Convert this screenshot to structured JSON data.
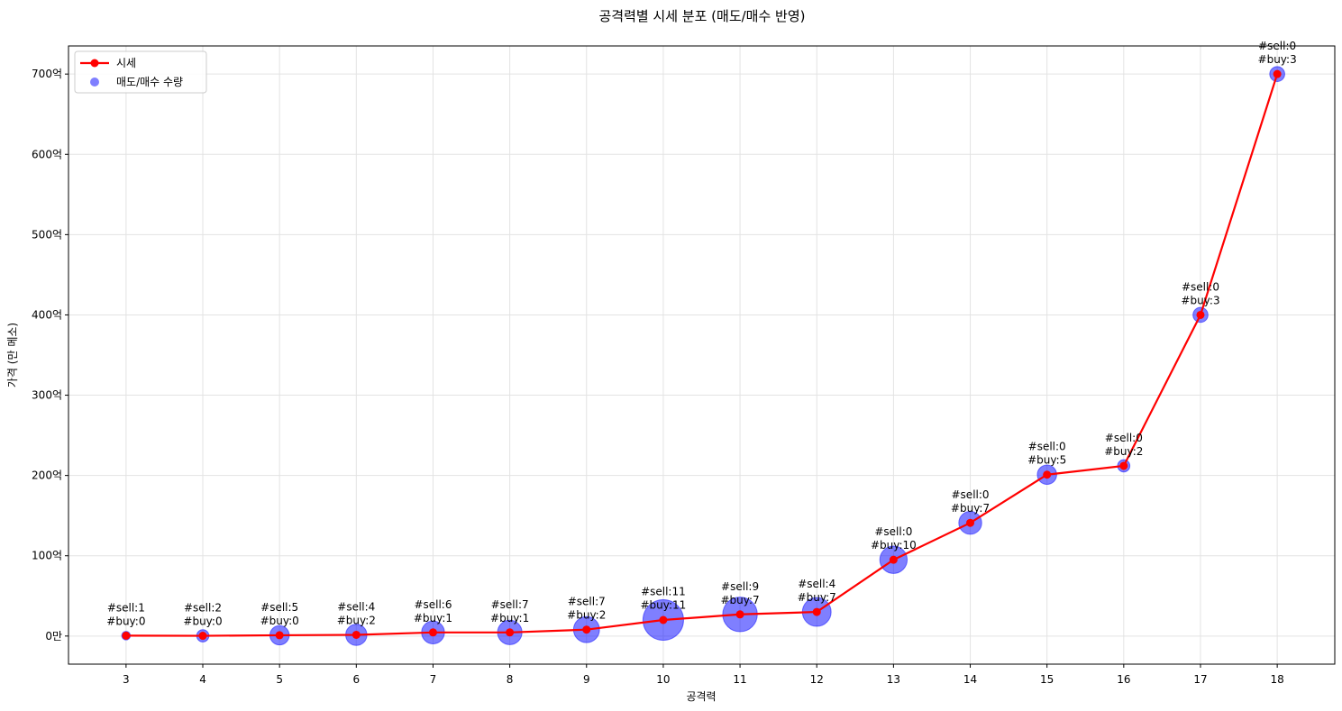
{
  "chart_data": {
    "type": "line",
    "title": "공격력별 시세 분포 (매도/매수 반영)",
    "xlabel": "공격력",
    "ylabel": "가격 (만 메소)",
    "x": [
      3,
      4,
      5,
      6,
      7,
      8,
      9,
      10,
      11,
      12,
      13,
      14,
      15,
      16,
      17,
      18
    ],
    "xlim": [
      2.25,
      18.75
    ],
    "ylim": [
      -35,
      735
    ],
    "y_ticks": [
      {
        "value": 0,
        "label": "0만"
      },
      {
        "value": 100,
        "label": "100억"
      },
      {
        "value": 200,
        "label": "200억"
      },
      {
        "value": 300,
        "label": "300억"
      },
      {
        "value": 400,
        "label": "400억"
      },
      {
        "value": 500,
        "label": "500억"
      },
      {
        "value": 600,
        "label": "600억"
      },
      {
        "value": 700,
        "label": "700억"
      }
    ],
    "y_unit": "억",
    "grid": true,
    "legend_position": "upper-left",
    "series": [
      {
        "name": "시세",
        "kind": "line",
        "color": "#ff0000",
        "values": [
          0.5,
          0.3,
          1,
          1.5,
          4.5,
          4.5,
          8,
          20,
          27,
          30,
          95,
          141,
          201,
          212,
          400,
          700
        ]
      },
      {
        "name": "매도/매수 수량",
        "kind": "scatter",
        "color": "#0000ff",
        "sell": [
          1,
          2,
          5,
          4,
          6,
          7,
          7,
          11,
          9,
          4,
          0,
          0,
          0,
          0,
          0,
          0
        ],
        "buy": [
          0,
          0,
          0,
          2,
          1,
          1,
          2,
          11,
          7,
          7,
          10,
          7,
          5,
          2,
          3,
          3
        ]
      }
    ],
    "annotations": [
      "#sell:1\n#buy:0",
      "#sell:2\n#buy:0",
      "#sell:5\n#buy:0",
      "#sell:4\n#buy:2",
      "#sell:6\n#buy:1",
      "#sell:7\n#buy:1",
      "#sell:7\n#buy:2",
      "#sell:11\n#buy:11",
      "#sell:9\n#buy:7",
      "#sell:4\n#buy:7",
      "#sell:0\n#buy:10",
      "#sell:0\n#buy:7",
      "#sell:0\n#buy:5",
      "#sell:0\n#buy:2",
      "#sell:0\n#buy:3",
      "#sell:0\n#buy:3"
    ]
  }
}
